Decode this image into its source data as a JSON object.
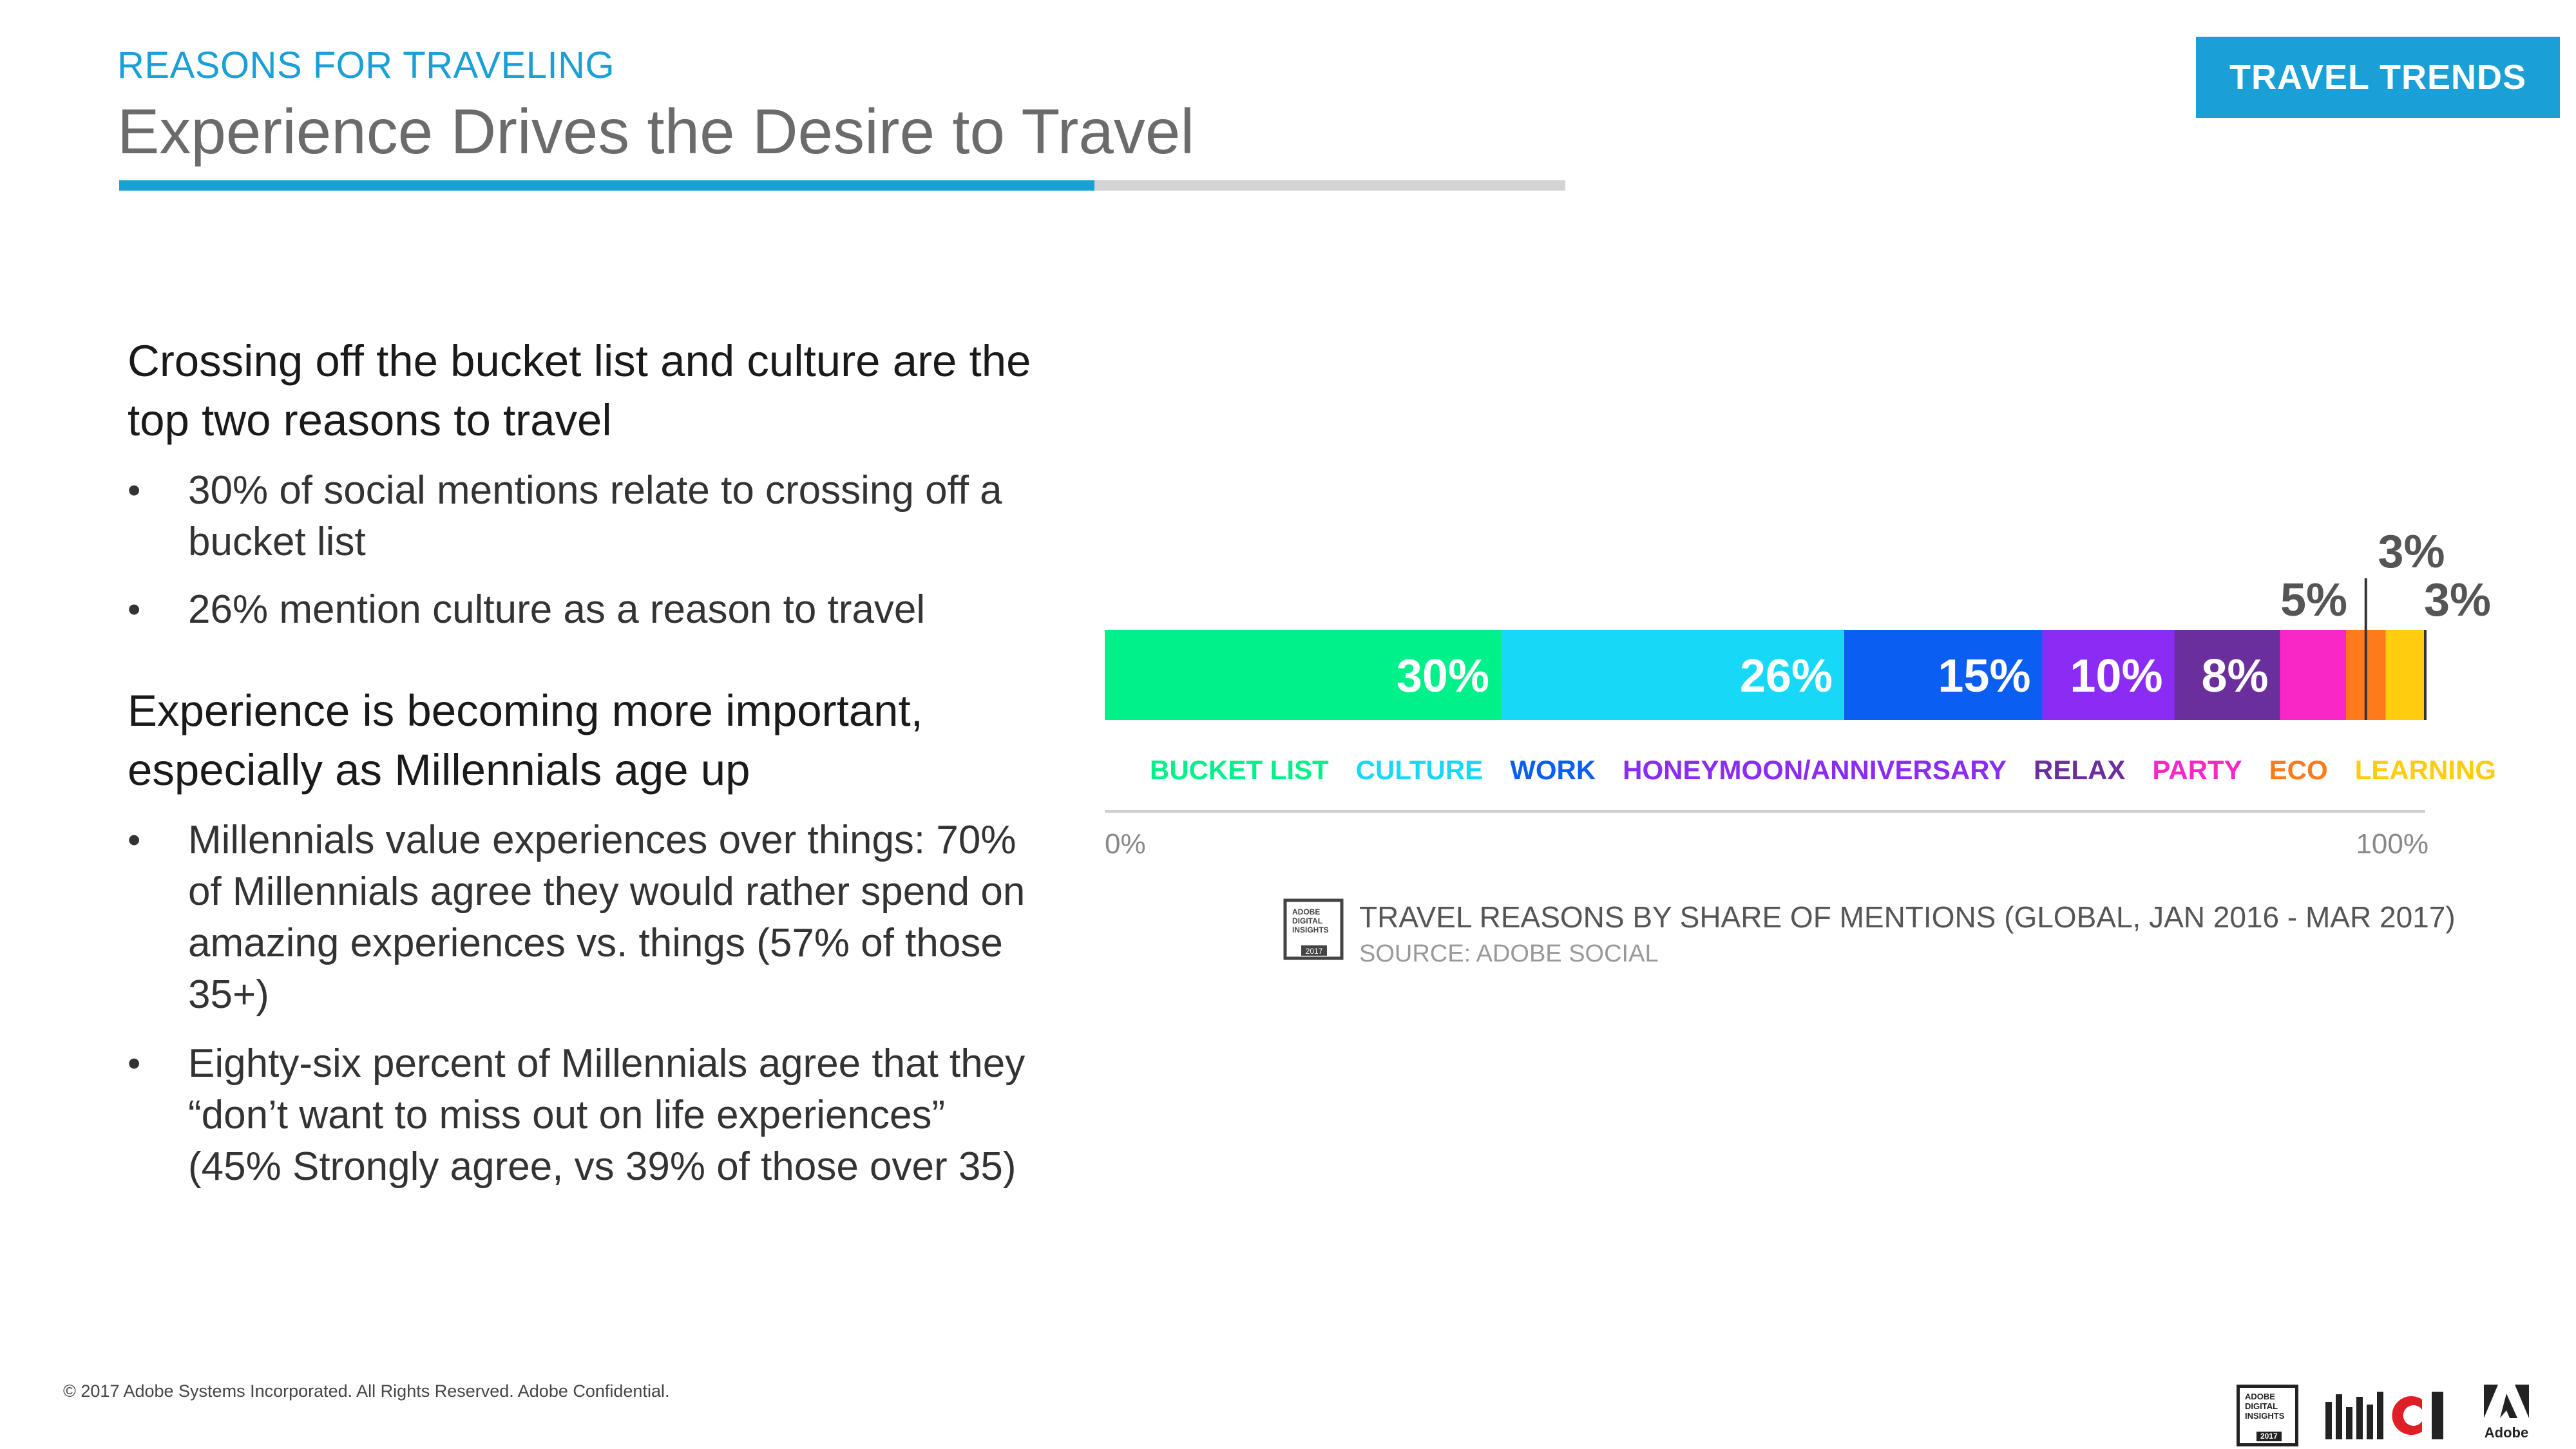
{
  "header": {
    "section_label": "REASONS FOR TRAVELING",
    "title": "Experience Drives the Desire to Travel",
    "badge": "TRAVEL TRENDS",
    "accent_color": "#1a9fd6"
  },
  "content": {
    "heading_1": "Crossing off the bucket list and culture are the top two reasons to travel",
    "bullets_1": [
      "30% of social mentions relate to crossing off a bucket list",
      "26% mention culture as a reason to travel"
    ],
    "heading_2": "Experience is becoming more important, especially as Millennials age up",
    "bullets_2": [
      "Millennials value experiences over things: 70% of Millennials agree they would rather spend on amazing experiences vs. things (57% of those 35+)",
      "Eighty-six percent of Millennials agree that they “don’t want to miss out on life experiences” (45% Strongly agree, vs 39% of those over 35)"
    ],
    "bullet_glyph": "•"
  },
  "chart_data": {
    "type": "bar",
    "orientation": "horizontal-stacked-100",
    "categories": [
      "BUCKET LIST",
      "CULTURE",
      "WORK",
      "HONEYMOON/ANNIVERSARY",
      "RELAX",
      "PARTY",
      "ECO",
      "LEARNING"
    ],
    "values": [
      30,
      26,
      15,
      10,
      8,
      5,
      3,
      3
    ],
    "value_labels": [
      "30%",
      "26%",
      "15%",
      "10%",
      "8%",
      "5%",
      "3%",
      "3%"
    ],
    "colors": [
      "#00f08a",
      "#18d8f8",
      "#0a5ef2",
      "#8b2cf5",
      "#6a2f9c",
      "#f927c6",
      "#ff7a1a",
      "#ffcc10"
    ],
    "axis_min_label": "0%",
    "axis_max_label": "100%",
    "xlim": [
      0,
      100
    ],
    "caption": "TRAVEL REASONS BY SHARE OF MENTIONS (GLOBAL, JAN 2016 - MAR 2017)",
    "source": "SOURCE: ADOBE SOCIAL",
    "legend_placement": "below"
  },
  "logos": {
    "adi_text": [
      "ADOBE",
      "DIGITAL",
      "INSIGHTS"
    ],
    "adi_year": "2017",
    "adobe_label": "Adobe"
  },
  "footer": {
    "copyright": "© 2017 Adobe Systems Incorporated.  All Rights Reserved.  Adobe Confidential."
  }
}
